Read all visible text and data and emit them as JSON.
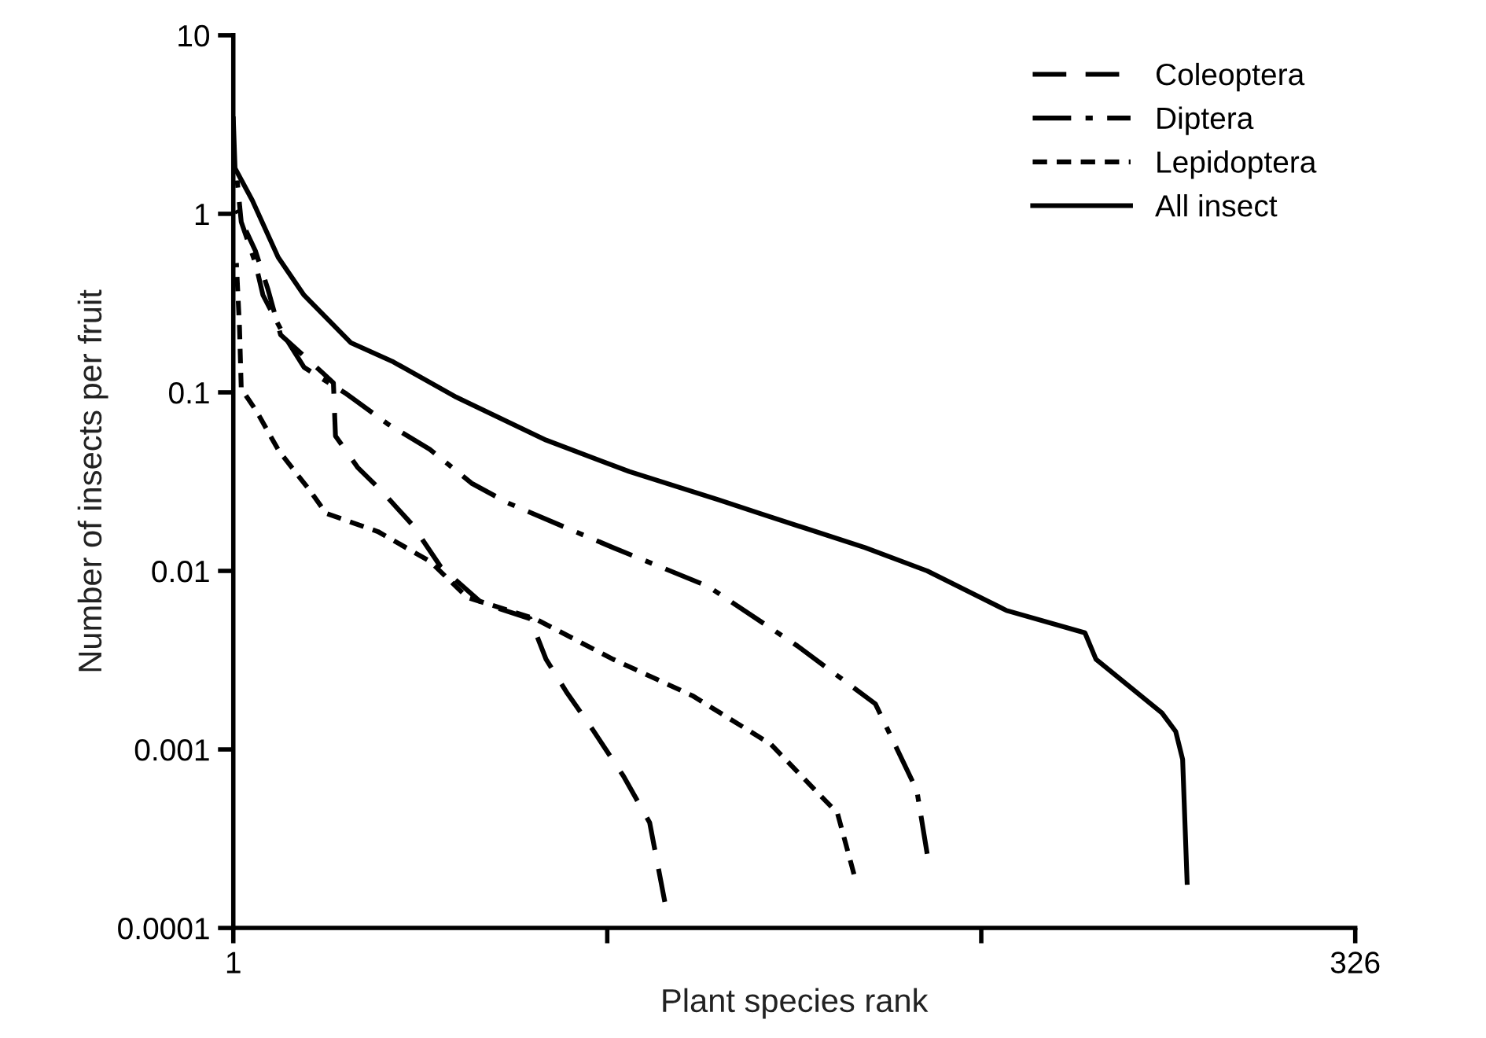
{
  "chart_data": {
    "type": "line",
    "xlabel": "Plant species rank",
    "ylabel": "Number of insects per fruit",
    "log": "y",
    "xlim": [
      1,
      326
    ],
    "xticks": [
      1,
      {
        "value": 109.33,
        "label": null
      },
      {
        "value": 217.67,
        "label": null
      },
      326
    ],
    "ylim": [
      0.0001,
      10
    ],
    "yticks": [
      0.0001,
      0.001,
      0.01,
      0.1,
      1,
      10
    ],
    "grid": false,
    "legend": "top right",
    "series": [
      {
        "name": "Coleoptera",
        "color": "#000000",
        "line_style": "dashed",
        "x": [
          1.9,
          7.4,
          11,
          14.7,
          27,
          30,
          30.6,
          37,
          44,
          53,
          61,
          73,
          87,
          91.6,
          97.5,
          105,
          114,
          121.6,
          126
        ],
        "values": [
          1.05,
          0.62,
          0.38,
          0.21,
          0.128,
          0.113,
          0.057,
          0.038,
          0.028,
          0.018,
          0.0106,
          0.0066,
          0.0054,
          0.0032,
          0.0021,
          0.0013,
          0.00071,
          0.00039,
          0.00014
        ]
      },
      {
        "name": "Diptera",
        "color": "#000000",
        "line_style": "dashdot",
        "x": [
          1.9,
          3.3,
          7.4,
          9.6,
          15.6,
          21.5,
          33.8,
          46,
          57.9,
          70,
          80.6,
          111,
          138.5,
          164.4,
          187,
          199,
          202
        ],
        "values": [
          1.7,
          0.9,
          0.53,
          0.35,
          0.21,
          0.138,
          0.098,
          0.066,
          0.048,
          0.031,
          0.024,
          0.0135,
          0.0082,
          0.0038,
          0.0018,
          0.00059,
          0.00026
        ]
      },
      {
        "name": "Lepidoptera",
        "color": "#000000",
        "line_style": "dotted",
        "x": [
          1.9,
          2.8,
          3.3,
          7.8,
          14.2,
          23.3,
          27.9,
          42.9,
          58,
          68.8,
          88.4,
          111,
          134,
          156.7,
          176,
          180.8
        ],
        "values": [
          0.53,
          0.23,
          0.105,
          0.078,
          0.047,
          0.028,
          0.021,
          0.0166,
          0.0113,
          0.0071,
          0.0054,
          0.0032,
          0.002,
          0.00107,
          0.00044,
          0.0002
        ]
      },
      {
        "name": "All insect",
        "color": "#000000",
        "line_style": "solid",
        "x": [
          1,
          1.5,
          6.5,
          14,
          21.5,
          35,
          47.4,
          65.6,
          91.6,
          115.7,
          141.6,
          153.5,
          184,
          202,
          225,
          247.7,
          250.9,
          270,
          274,
          276,
          277.3
        ],
        "values": [
          3.4,
          1.8,
          1.19,
          0.57,
          0.35,
          0.19,
          0.148,
          0.094,
          0.054,
          0.036,
          0.025,
          0.021,
          0.0135,
          0.01,
          0.006,
          0.0045,
          0.0032,
          0.0016,
          0.00126,
          0.00088,
          0.00018
        ]
      }
    ]
  }
}
